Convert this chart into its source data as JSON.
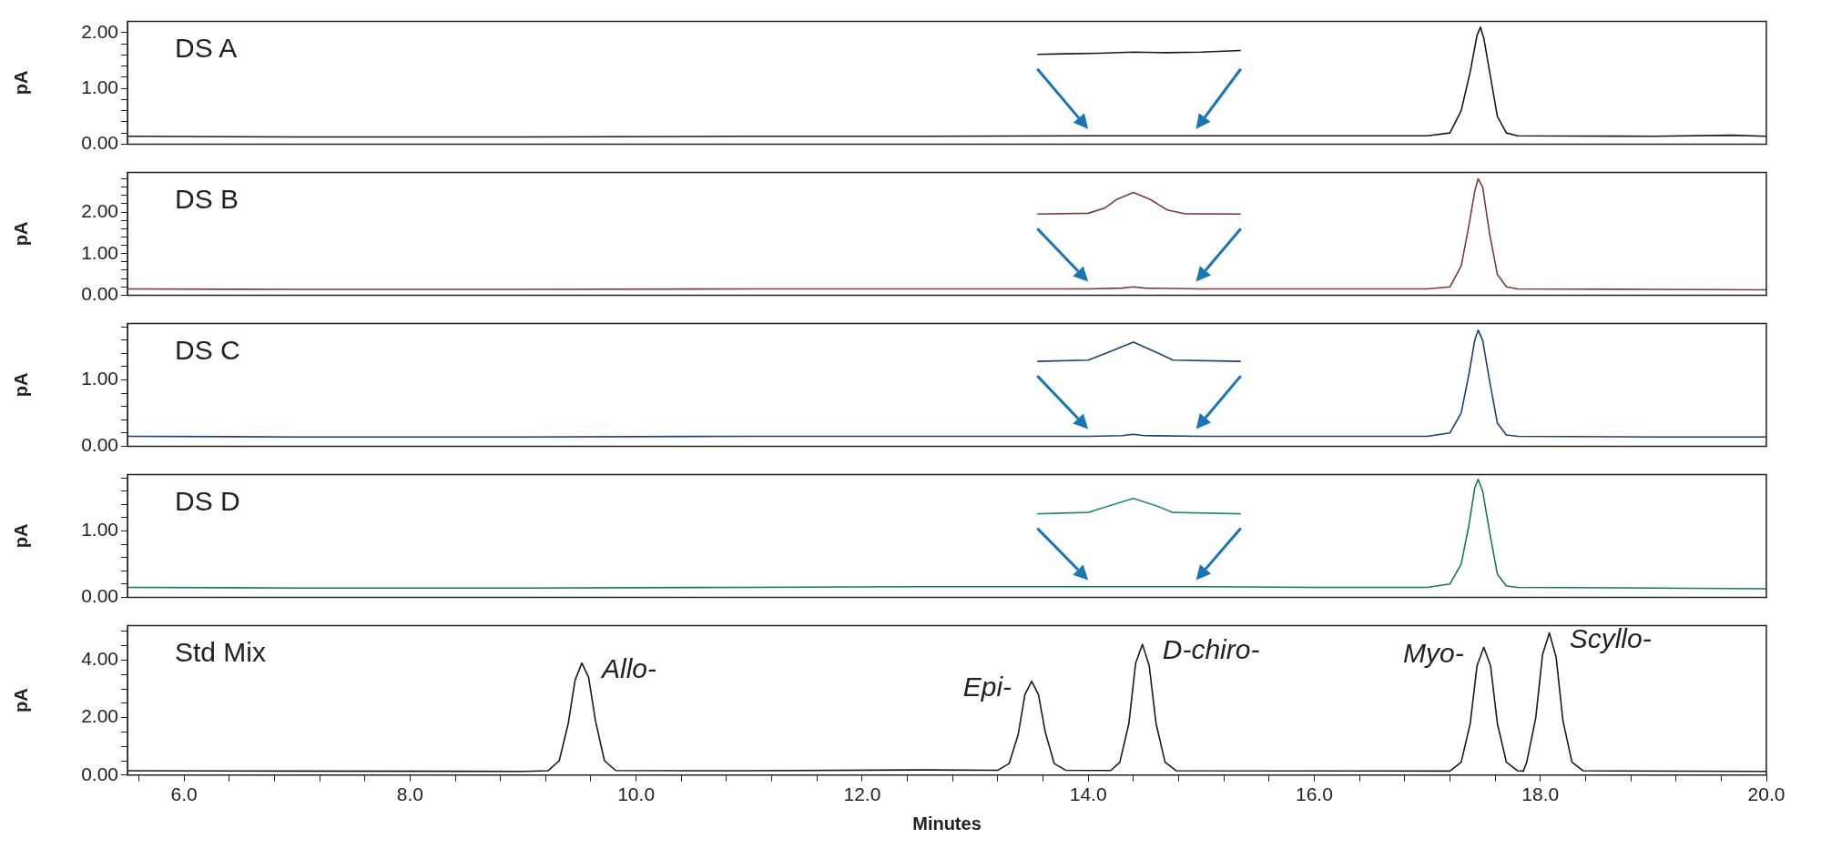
{
  "chart_data": [
    {
      "type": "line",
      "title": "DS A",
      "ylabel": "pA",
      "tick_labels": "y",
      "xlim": [
        5.5,
        20
      ],
      "ylim": [
        0,
        2.2
      ],
      "yticks": [
        {
          "value": 0,
          "label": "0.00"
        },
        {
          "value": 0.2,
          "label": null
        },
        {
          "value": 0.4,
          "label": null
        },
        {
          "value": 0.6,
          "label": null
        },
        {
          "value": 0.8,
          "label": null
        },
        {
          "value": 1,
          "label": "1.00"
        },
        {
          "value": 1.2,
          "label": null
        },
        {
          "value": 1.4,
          "label": null
        },
        {
          "value": 1.6,
          "label": null
        },
        {
          "value": 1.8,
          "label": null
        },
        {
          "value": 2,
          "label": "2.00"
        }
      ],
      "x": [
        5.5,
        7,
        9,
        11,
        12.5,
        14,
        15,
        16,
        17,
        17.2,
        17.3,
        17.38,
        17.44,
        17.47,
        17.5,
        17.56,
        17.62,
        17.7,
        17.8,
        19,
        19.7,
        20
      ],
      "series": [
        {
          "color": "#1a1a1a",
          "values": [
            0.14,
            0.13,
            0.13,
            0.14,
            0.14,
            0.15,
            0.15,
            0.15,
            0.15,
            0.2,
            0.6,
            1.3,
            1.95,
            2.1,
            1.9,
            1.2,
            0.5,
            0.2,
            0.15,
            0.14,
            0.16,
            0.14
          ]
        },
        {
          "color": "#1a1a1a",
          "x": [
            13.55,
            13.8,
            14.1,
            14.4,
            14.7,
            15,
            15.35
          ],
          "values": [
            1.61,
            1.62,
            1.63,
            1.65,
            1.64,
            1.65,
            1.68
          ]
        }
      ]
    },
    {
      "type": "line",
      "title": "DS B",
      "ylabel": "pA",
      "tick_labels": "y",
      "xlim": [
        5.5,
        20
      ],
      "ylim": [
        0,
        2.95
      ],
      "yticks": [
        {
          "value": 0,
          "label": "0.00"
        },
        {
          "value": 0.2,
          "label": null
        },
        {
          "value": 0.4,
          "label": null
        },
        {
          "value": 0.6,
          "label": null
        },
        {
          "value": 0.8,
          "label": null
        },
        {
          "value": 1,
          "label": "1.00"
        },
        {
          "value": 1.2,
          "label": null
        },
        {
          "value": 1.4,
          "label": null
        },
        {
          "value": 1.6,
          "label": null
        },
        {
          "value": 1.8,
          "label": null
        },
        {
          "value": 2,
          "label": "2.00"
        },
        {
          "value": 2.2,
          "label": null
        },
        {
          "value": 2.4,
          "label": null
        },
        {
          "value": 2.6,
          "label": null
        },
        {
          "value": 2.8,
          "label": null
        }
      ],
      "x": [
        5.5,
        7,
        9,
        11,
        12.5,
        14,
        14.3,
        14.4,
        14.5,
        15,
        16,
        17,
        17.2,
        17.3,
        17.37,
        17.42,
        17.45,
        17.49,
        17.55,
        17.62,
        17.7,
        17.8,
        19,
        20
      ],
      "series": [
        {
          "color": "#7a3b3b",
          "values": [
            0.15,
            0.14,
            0.14,
            0.15,
            0.15,
            0.15,
            0.17,
            0.2,
            0.17,
            0.15,
            0.15,
            0.15,
            0.2,
            0.7,
            1.7,
            2.5,
            2.8,
            2.6,
            1.5,
            0.5,
            0.2,
            0.15,
            0.14,
            0.13
          ]
        },
        {
          "color": "#7a3b3b",
          "x": [
            13.55,
            14,
            14.15,
            14.25,
            14.4,
            14.55,
            14.7,
            14.85,
            15.35
          ],
          "values": [
            1.95,
            1.97,
            2.1,
            2.3,
            2.47,
            2.3,
            2.05,
            1.96,
            1.95
          ]
        }
      ]
    },
    {
      "type": "line",
      "title": "DS C",
      "ylabel": "pA",
      "tick_labels": "y",
      "xlim": [
        5.5,
        20
      ],
      "ylim": [
        0,
        1.85
      ],
      "yticks": [
        {
          "value": 0,
          "label": "0.00"
        },
        {
          "value": 0.2,
          "label": null
        },
        {
          "value": 0.4,
          "label": null
        },
        {
          "value": 0.6,
          "label": null
        },
        {
          "value": 0.8,
          "label": null
        },
        {
          "value": 1,
          "label": "1.00"
        },
        {
          "value": 1.2,
          "label": null
        },
        {
          "value": 1.4,
          "label": null
        },
        {
          "value": 1.6,
          "label": null
        },
        {
          "value": 1.8,
          "label": null
        }
      ],
      "x": [
        5.5,
        7,
        9,
        11,
        12.5,
        14,
        14.3,
        14.4,
        14.5,
        15,
        16,
        17,
        17.2,
        17.3,
        17.37,
        17.42,
        17.45,
        17.49,
        17.55,
        17.62,
        17.7,
        17.8,
        19,
        20
      ],
      "series": [
        {
          "color": "#1f3f73",
          "values": [
            0.15,
            0.14,
            0.14,
            0.15,
            0.15,
            0.15,
            0.16,
            0.18,
            0.16,
            0.15,
            0.15,
            0.15,
            0.2,
            0.5,
            1.1,
            1.6,
            1.75,
            1.6,
            1.0,
            0.35,
            0.17,
            0.15,
            0.14,
            0.14
          ]
        },
        {
          "color": "#1f3f73",
          "x": [
            13.55,
            14,
            14.15,
            14.4,
            14.6,
            14.75,
            15.35
          ],
          "values": [
            1.28,
            1.3,
            1.4,
            1.57,
            1.42,
            1.3,
            1.28
          ]
        }
      ]
    },
    {
      "type": "line",
      "title": "DS D",
      "ylabel": "pA",
      "tick_labels": "y",
      "xlim": [
        5.5,
        20
      ],
      "ylim": [
        0,
        1.85
      ],
      "yticks": [
        {
          "value": 0,
          "label": "0.00"
        },
        {
          "value": 0.2,
          "label": null
        },
        {
          "value": 0.4,
          "label": null
        },
        {
          "value": 0.6,
          "label": null
        },
        {
          "value": 0.8,
          "label": null
        },
        {
          "value": 1,
          "label": "1.00"
        },
        {
          "value": 1.2,
          "label": null
        },
        {
          "value": 1.4,
          "label": null
        },
        {
          "value": 1.6,
          "label": null
        },
        {
          "value": 1.8,
          "label": null
        }
      ],
      "x": [
        5.5,
        7,
        9,
        11,
        12.5,
        14,
        15,
        16,
        17,
        17.2,
        17.3,
        17.37,
        17.42,
        17.45,
        17.49,
        17.55,
        17.62,
        17.7,
        17.8,
        19,
        20
      ],
      "series": [
        {
          "color": "#1a7a4a",
          "values": [
            0.15,
            0.14,
            0.14,
            0.15,
            0.16,
            0.16,
            0.16,
            0.15,
            0.15,
            0.2,
            0.5,
            1.1,
            1.65,
            1.78,
            1.6,
            1.0,
            0.35,
            0.17,
            0.15,
            0.14,
            0.13
          ]
        },
        {
          "color": "#2a8a7a",
          "x": [
            13.55,
            14,
            14.15,
            14.4,
            14.6,
            14.75,
            15.35
          ],
          "values": [
            1.26,
            1.28,
            1.36,
            1.49,
            1.38,
            1.28,
            1.26
          ]
        }
      ]
    },
    {
      "type": "line",
      "title": "Std Mix",
      "xlabel": "Minutes",
      "ylabel": "pA",
      "xlim": [
        5.5,
        20
      ],
      "ylim": [
        0,
        5.2
      ],
      "xticks": [
        {
          "value": 5.6,
          "label": null
        },
        {
          "value": 6,
          "label": "6.0"
        },
        {
          "value": 6.4,
          "label": null
        },
        {
          "value": 6.8,
          "label": null
        },
        {
          "value": 7.2,
          "label": null
        },
        {
          "value": 7.6,
          "label": null
        },
        {
          "value": 8,
          "label": "8.0"
        },
        {
          "value": 8.4,
          "label": null
        },
        {
          "value": 8.8,
          "label": null
        },
        {
          "value": 9.2,
          "label": null
        },
        {
          "value": 9.6,
          "label": null
        },
        {
          "value": 10,
          "label": "10.0"
        },
        {
          "value": 10.4,
          "label": null
        },
        {
          "value": 10.8,
          "label": null
        },
        {
          "value": 11.2,
          "label": null
        },
        {
          "value": 11.6,
          "label": null
        },
        {
          "value": 12,
          "label": "12.0"
        },
        {
          "value": 12.4,
          "label": null
        },
        {
          "value": 12.8,
          "label": null
        },
        {
          "value": 13.2,
          "label": null
        },
        {
          "value": 13.6,
          "label": null
        },
        {
          "value": 14,
          "label": "14.0"
        },
        {
          "value": 14.4,
          "label": null
        },
        {
          "value": 14.8,
          "label": null
        },
        {
          "value": 15.2,
          "label": null
        },
        {
          "value": 15.6,
          "label": null
        },
        {
          "value": 16,
          "label": "16.0"
        },
        {
          "value": 16.4,
          "label": null
        },
        {
          "value": 16.8,
          "label": null
        },
        {
          "value": 17.2,
          "label": null
        },
        {
          "value": 17.6,
          "label": null
        },
        {
          "value": 18,
          "label": "18.0"
        },
        {
          "value": 18.4,
          "label": null
        },
        {
          "value": 18.8,
          "label": null
        },
        {
          "value": 19.2,
          "label": null
        },
        {
          "value": 19.6,
          "label": null
        },
        {
          "value": 20,
          "label": "20.0"
        }
      ],
      "yticks": [
        {
          "value": 0,
          "label": "0.00"
        },
        {
          "value": 0.5,
          "label": null
        },
        {
          "value": 1,
          "label": null
        },
        {
          "value": 1.5,
          "label": null
        },
        {
          "value": 2,
          "label": "2.00"
        },
        {
          "value": 2.5,
          "label": null
        },
        {
          "value": 3,
          "label": null
        },
        {
          "value": 3.5,
          "label": null
        },
        {
          "value": 4,
          "label": "4.00"
        },
        {
          "value": 4.5,
          "label": null
        },
        {
          "value": 5,
          "label": null
        }
      ],
      "x": [
        5.5,
        7,
        9,
        9.22,
        9.32,
        9.4,
        9.46,
        9.52,
        9.58,
        9.64,
        9.72,
        9.82,
        11,
        12.5,
        13.2,
        13.3,
        13.38,
        13.44,
        13.5,
        13.56,
        13.62,
        13.7,
        13.8,
        14.2,
        14.28,
        14.36,
        14.42,
        14.48,
        14.54,
        14.6,
        14.68,
        14.78,
        17.2,
        17.3,
        17.38,
        17.44,
        17.5,
        17.56,
        17.62,
        17.7,
        17.8,
        17.85,
        17.88,
        17.96,
        18.02,
        18.08,
        18.14,
        18.2,
        18.28,
        18.38,
        20
      ],
      "series": [
        {
          "color": "#1a1a1a",
          "values": [
            0.15,
            0.14,
            0.13,
            0.15,
            0.5,
            1.8,
            3.3,
            3.9,
            3.4,
            1.9,
            0.5,
            0.16,
            0.15,
            0.18,
            0.17,
            0.4,
            1.4,
            2.8,
            3.27,
            2.8,
            1.5,
            0.4,
            0.17,
            0.16,
            0.45,
            1.8,
            3.9,
            4.55,
            3.8,
            1.8,
            0.45,
            0.15,
            0.14,
            0.45,
            1.8,
            3.8,
            4.45,
            3.8,
            1.8,
            0.45,
            0.15,
            0.14,
            0.45,
            2.0,
            4.2,
            4.95,
            4.1,
            1.9,
            0.45,
            0.15,
            0.13
          ]
        }
      ],
      "annotations": [
        {
          "text": "Allo-",
          "x": 9.52,
          "y": 3.9
        },
        {
          "text": "Epi-",
          "x": 13.5,
          "y": 3.27
        },
        {
          "text": "D-chiro-",
          "x": 14.48,
          "y": 4.55
        },
        {
          "text": "Myo-",
          "x": 17.5,
          "y": 4.45
        },
        {
          "text": "Scyllo-",
          "x": 18.08,
          "y": 4.95
        }
      ]
    }
  ]
}
